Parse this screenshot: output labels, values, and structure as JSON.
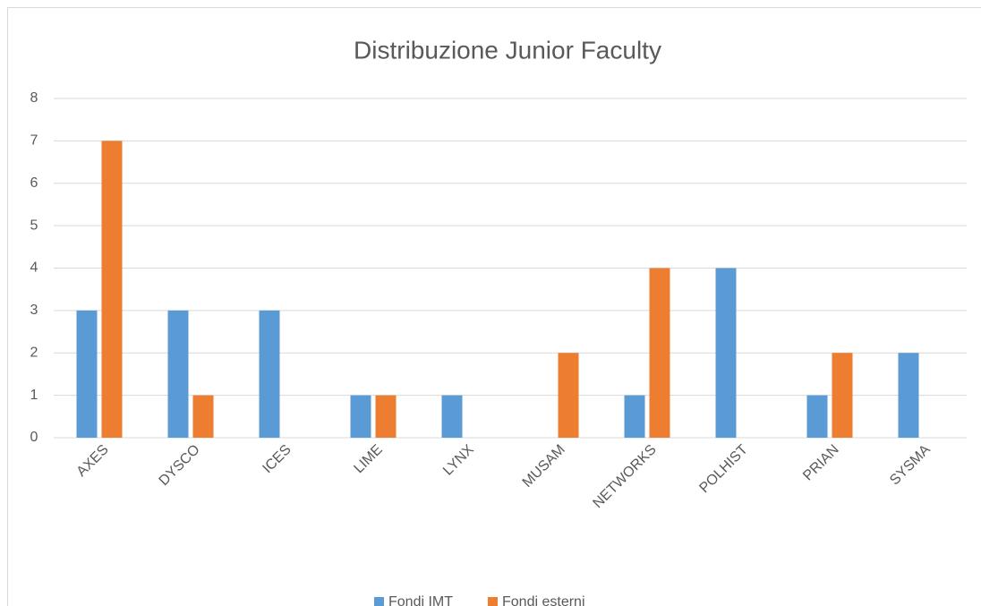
{
  "chart_data": {
    "type": "bar",
    "title": "Distribuzione Junior Faculty",
    "categories": [
      "AXES",
      "DYSCO",
      "ICES",
      "LIME",
      "LYNX",
      "MUSAM",
      "NETWORKS",
      "POLHIST",
      "PRIAN",
      "SYSMA"
    ],
    "series": [
      {
        "name": "Fondi IMT",
        "color": "#5b9bd5",
        "values": [
          3,
          3,
          3,
          1,
          1,
          0,
          1,
          4,
          1,
          2
        ]
      },
      {
        "name": "Fondi esterni",
        "color": "#ed7d31",
        "values": [
          7,
          1,
          0,
          1,
          0,
          2,
          4,
          0,
          2,
          0
        ]
      }
    ],
    "ylim": [
      0,
      8
    ],
    "yticks": [
      0,
      1,
      2,
      3,
      4,
      5,
      6,
      7,
      8
    ],
    "grid": true,
    "legend": "bottom"
  }
}
